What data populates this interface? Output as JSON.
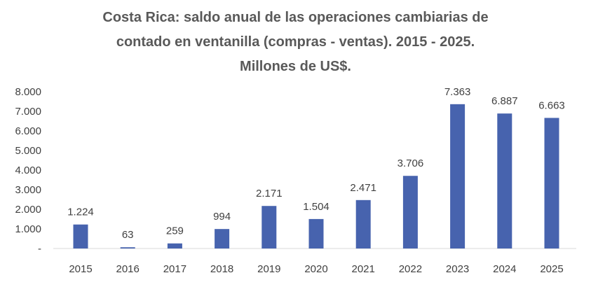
{
  "chart_data": {
    "type": "bar",
    "title_lines": [
      "Costa Rica: saldo anual de las operaciones cambiarias de",
      "contado en ventanilla (compras - ventas). 2015 - 2025.",
      "Millones de US$."
    ],
    "categories": [
      "2015",
      "2016",
      "2017",
      "2018",
      "2019",
      "2020",
      "2021",
      "2022",
      "2023",
      "2024",
      "2025"
    ],
    "values": [
      1224,
      63,
      259,
      994,
      2171,
      1504,
      2471,
      3706,
      7363,
      6887,
      6663
    ],
    "data_labels": [
      "1.224",
      "63",
      "259",
      "994",
      "2.171",
      "1.504",
      "2.471",
      "3.706",
      "7.363",
      "6.887",
      "6.663"
    ],
    "yticks": [
      0,
      1000,
      2000,
      3000,
      4000,
      5000,
      6000,
      7000,
      8000
    ],
    "ytick_labels": [
      "-",
      "1.000",
      "2.000",
      "3.000",
      "4.000",
      "5.000",
      "6.000",
      "7.000",
      "8.000"
    ],
    "ylim": [
      0,
      8000
    ],
    "xlabel": "",
    "ylabel": "",
    "grid": false,
    "bar_color": "#4763AE"
  }
}
